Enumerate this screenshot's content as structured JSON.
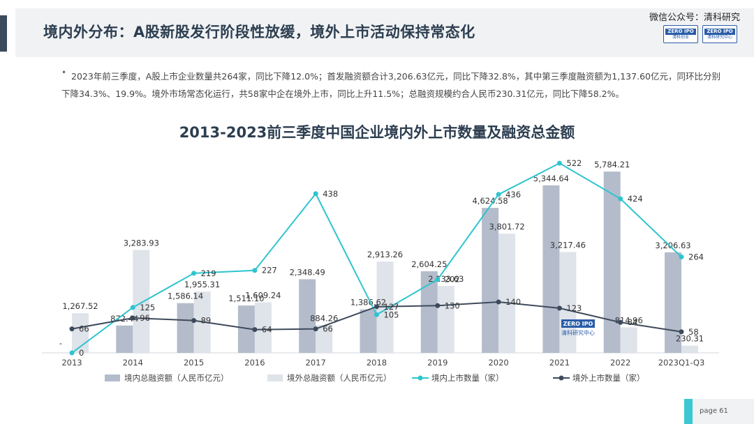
{
  "header": {
    "title": "境内外分布：A股新股发行阶段性放缓，境外上市活动保持常态化",
    "watermark": "微信公众号：清科研究",
    "logo1": {
      "top": "ZERO IPO",
      "bottom": "清科创业"
    },
    "logo2": {
      "top": "ZERO IPO",
      "bottom": "清科研究中心"
    }
  },
  "summary": {
    "text": "2023年前三季度，A股上市企业数量共264家，同比下降12.0%；首发融资额合计3,206.63亿元，同比下降32.8%，其中第三季度融资额为1,137.60亿元，同环比分别下降34.3%、19.9%。境外市场常态化运行，共58家中企在境外上市，同比上升11.5%；总融资规模约合人民币230.31亿元，同比下降58.2%。"
  },
  "chart_data": {
    "type": "bar",
    "title": "2013-2023前三季度中国企业境内外上市数量及融资总金额",
    "categories": [
      "2013",
      "2014",
      "2015",
      "2016",
      "2017",
      "2018",
      "2019",
      "2020",
      "2021",
      "2022",
      "2023Q1-Q3"
    ],
    "series": [
      {
        "name": "境内总融资额（人民币亿元）",
        "type": "bar",
        "color": "#b4bccb",
        "values": [
          null,
          872.44,
          1586.14,
          1511.1,
          2348.49,
          1386.62,
          2604.25,
          4624.58,
          5344.64,
          5784.21,
          3206.63
        ],
        "labels": [
          "-",
          "872.44",
          "1,586.14",
          "1,511.10",
          "2,348.49",
          "1,386.62",
          "2,604.25",
          "4,624.58",
          "5,344.64",
          "5,784.21",
          "3,206.63"
        ]
      },
      {
        "name": "境外总融资额（人民币亿元）",
        "type": "bar",
        "color": "#dfe3ea",
        "values": [
          1267.52,
          3283.93,
          1955.31,
          1609.24,
          884.26,
          2913.26,
          2133.63,
          3801.72,
          3217.46,
          814.96,
          230.31
        ],
        "labels": [
          "1,267.52",
          "3,283.93",
          "1,955.31",
          "1,609.24",
          "884.26",
          "2,913.26",
          "2,133.63",
          "3,801.72",
          "3,217.46",
          "814.96",
          "230.31"
        ]
      },
      {
        "name": "境内上市数量（家）",
        "type": "line",
        "color": "#2ec4cf",
        "values": [
          0,
          125,
          219,
          227,
          438,
          105,
          202,
          436,
          522,
          424,
          264
        ]
      },
      {
        "name": "境外上市数量（家）",
        "type": "line",
        "color": "#3e4a5c",
        "values": [
          66,
          96,
          89,
          64,
          66,
          127,
          130,
          140,
          123,
          84,
          58
        ]
      }
    ],
    "watermark_logo": {
      "top": "ZERO IPO",
      "bottom": "清科研究中心"
    }
  },
  "footer": {
    "page_label": "page  61"
  }
}
